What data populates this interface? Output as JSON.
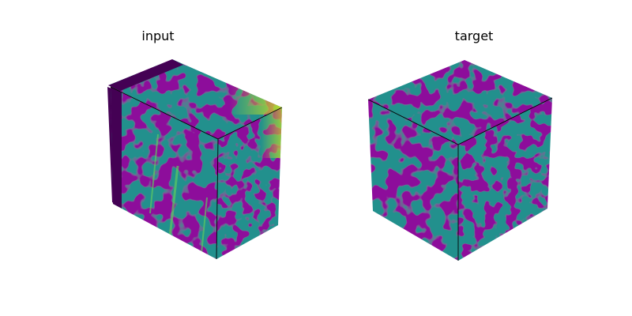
{
  "figure": {
    "panels": [
      {
        "title": "input",
        "colormap": "viridis"
      },
      {
        "title": "target",
        "colormap": "viridis"
      }
    ]
  },
  "colors": {
    "dark": "#440154",
    "mid": "#21908d",
    "light_green": "#5ec962",
    "yellow": "#bddf26",
    "edge": "#000000"
  }
}
